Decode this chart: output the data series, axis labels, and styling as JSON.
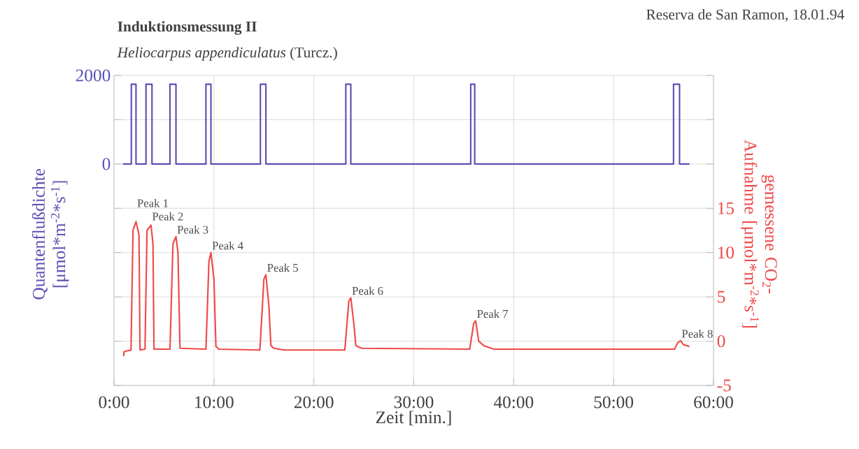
{
  "chart_data": {
    "type": "line",
    "title": "Induktionsmessung II",
    "subtitle": "*Heliocarpus appendiculatus* (Turcz.)",
    "xlabel": "Zeit [min.]",
    "ylabel": "Quantenflußdichte [μmol*m$^{-2}$*s$^{-1}$]",
    "y2label": "gemessene CO$_{2}$-Aufnahme [μmol*m$^{-2}$*s$^{-1}$]",
    "annotations": [
      "Reserva de San Ramon, 18.01.94",
      {
        "text": "Peak 1",
        "x": 2.2,
        "y": -1300
      },
      {
        "text": "Peak 2",
        "x": 3.7,
        "y": -1380
      },
      {
        "text": "Peak 3",
        "x": 6.2,
        "y": -1640
      },
      {
        "text": "Peak 4",
        "x": 9.7,
        "y": -2000
      },
      {
        "text": "Peak 5",
        "x": 15.2,
        "y": -2500
      },
      {
        "text": "Peak 6",
        "x": 23.7,
        "y": -3020
      },
      {
        "text": "Peak 7",
        "x": 36.2,
        "y": -3540
      },
      {
        "text": "Peak 8",
        "x": 56.7,
        "y": -3990
      }
    ],
    "xlim": [
      0,
      60
    ],
    "xticks": [
      {
        "value": 0,
        "label": "0:00"
      },
      {
        "value": 10,
        "label": "10:00"
      },
      {
        "value": 20,
        "label": "20:00"
      },
      {
        "value": 30,
        "label": "30:00"
      },
      {
        "value": 40,
        "label": "40:00"
      },
      {
        "value": 50,
        "label": "50:00"
      },
      {
        "value": 60,
        "label": "60:00"
      }
    ],
    "ylim": [
      -5000,
      2000
    ],
    "yticks": [
      {
        "value": -5000,
        "label": null
      },
      {
        "value": -4000,
        "label": null
      },
      {
        "value": -3000,
        "label": null
      },
      {
        "value": -2000,
        "label": null
      },
      {
        "value": -1000,
        "label": null
      },
      0,
      {
        "value": 1000,
        "label": null
      },
      2000
    ],
    "y2lim": [
      -5,
      30
    ],
    "y2ticks": [
      -5,
      0,
      5,
      10,
      15,
      {
        "value": 20,
        "label": null
      },
      {
        "value": 25,
        "label": null
      },
      {
        "value": 30,
        "label": null
      }
    ],
    "grid": true,
    "series": [
      {
        "color": "#5a50b4",
        "x": [
          0.9,
          1.73,
          1.73,
          2.2,
          2.2,
          3.2,
          3.2,
          3.8,
          3.8,
          5.6,
          5.6,
          6.2,
          6.2,
          9.2,
          9.2,
          9.7,
          9.7,
          14.65,
          14.65,
          15.2,
          15.2,
          23.2,
          23.2,
          23.7,
          23.7,
          35.7,
          35.7,
          36.1,
          36.1,
          56.0,
          56.0,
          56.6,
          56.6,
          57.6
        ],
        "values": [
          0,
          0,
          1800,
          1800,
          0,
          0,
          1800,
          1800,
          0,
          0,
          1800,
          1800,
          0,
          0,
          1800,
          1800,
          0,
          0,
          1800,
          1800,
          0,
          0,
          1800,
          1800,
          0,
          0,
          1800,
          1800,
          0,
          0,
          1800,
          1800,
          0,
          0
        ]
      },
      {
        "color": "#f04848",
        "axis": "y2",
        "x": [
          0.96,
          1.0,
          1.3,
          1.7,
          1.9,
          2.2,
          2.5,
          2.6,
          3.1,
          3.3,
          3.7,
          3.9,
          4.0,
          5.6,
          5.9,
          6.2,
          6.4,
          6.6,
          9.2,
          9.5,
          9.7,
          10.0,
          10.2,
          10.5,
          14.6,
          15.0,
          15.2,
          15.5,
          15.7,
          16.0,
          17.0,
          23.1,
          23.5,
          23.7,
          24.0,
          24.2,
          24.8,
          35.6,
          36.0,
          36.2,
          36.5,
          37.0,
          38.0,
          56.1,
          56.4,
          56.7,
          57.0,
          57.6
        ],
        "values": [
          -1.7,
          -1.2,
          -1.1,
          -1.0,
          12.5,
          13.5,
          12,
          -1.0,
          -0.9,
          12.5,
          13.1,
          11,
          -0.9,
          -0.9,
          11,
          11.8,
          10,
          -0.8,
          -0.9,
          9,
          10.0,
          7,
          -0.6,
          -0.9,
          -1.0,
          7,
          7.5,
          4,
          -0.5,
          -0.8,
          -1.0,
          -1.0,
          4.5,
          4.9,
          2,
          -0.5,
          -0.8,
          -0.9,
          2.0,
          2.3,
          0.0,
          -0.5,
          -0.9,
          -0.9,
          -0.2,
          0.05,
          -0.4,
          -0.6
        ]
      }
    ]
  }
}
